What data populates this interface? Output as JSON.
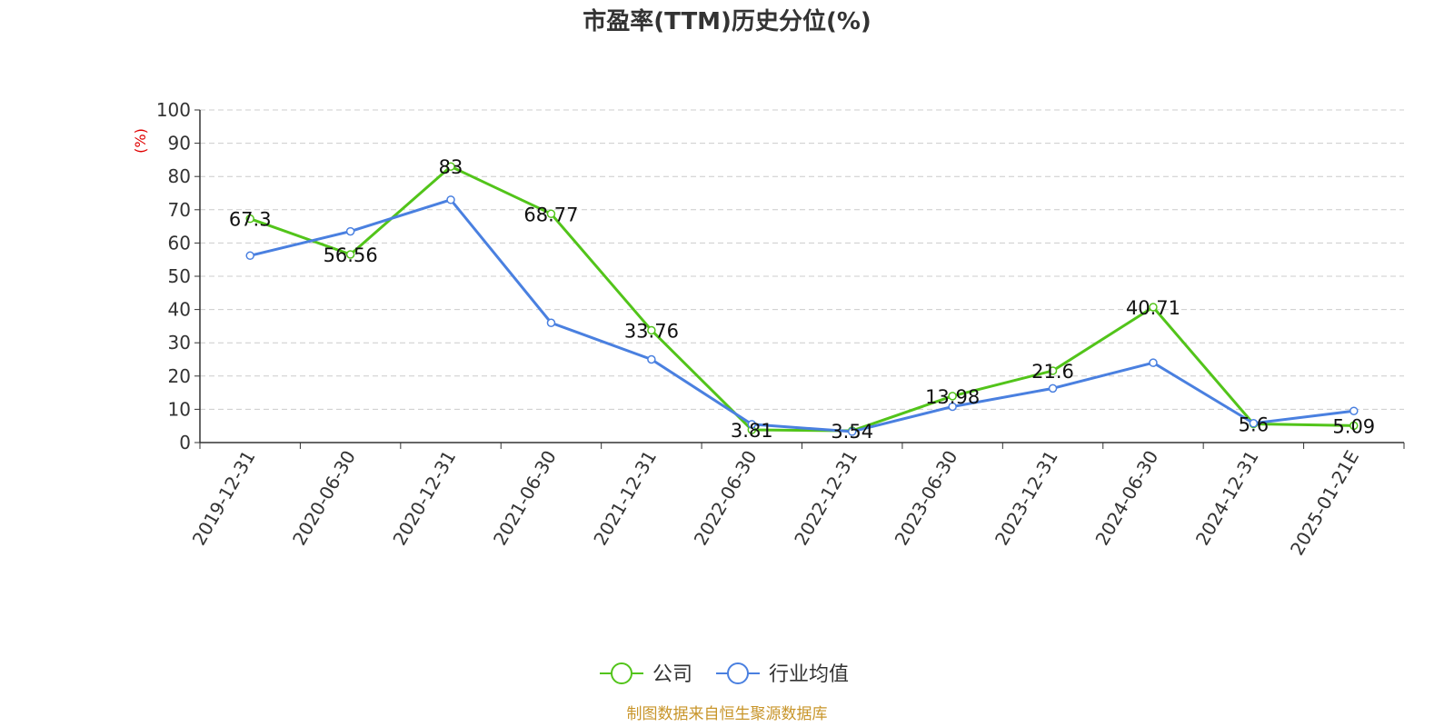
{
  "chart_data": {
    "type": "line",
    "title": "市盈率(TTM)历史分位(%)",
    "unit_label": "(%)",
    "categories": [
      "2019-12-31",
      "2020-06-30",
      "2020-12-31",
      "2021-06-30",
      "2021-12-31",
      "2022-06-30",
      "2022-12-31",
      "2023-06-30",
      "2023-12-31",
      "2024-06-30",
      "2024-12-31",
      "2025-01-21E"
    ],
    "ylim": [
      0,
      100
    ],
    "yticks": [
      0,
      10,
      20,
      30,
      40,
      50,
      60,
      70,
      80,
      90,
      100
    ],
    "grid": true,
    "legend_position": "bottom-center",
    "series": [
      {
        "name": "公司",
        "color": "#52c41a",
        "values": [
          67.3,
          56.56,
          83,
          68.77,
          33.76,
          3.81,
          3.54,
          13.98,
          21.6,
          40.71,
          5.6,
          5.09
        ],
        "data_labels": [
          "67.3",
          "56.56",
          "83",
          "68.77",
          "33.76",
          "3.81",
          "3.54",
          "13.98",
          "21.6",
          "40.71",
          "5.6",
          "5.09"
        ]
      },
      {
        "name": "行业均值",
        "color": "#4a80e0",
        "values": [
          56.2,
          63.5,
          73,
          36,
          25,
          5.5,
          3.3,
          10.8,
          16.3,
          24,
          5.8,
          9.5
        ]
      }
    ],
    "source": "制图数据来自恒生聚源数据库"
  },
  "colors": {
    "unit_label": "#e00000",
    "source_text": "#c8952a",
    "axis": "#333333",
    "grid": "#cccccc"
  }
}
